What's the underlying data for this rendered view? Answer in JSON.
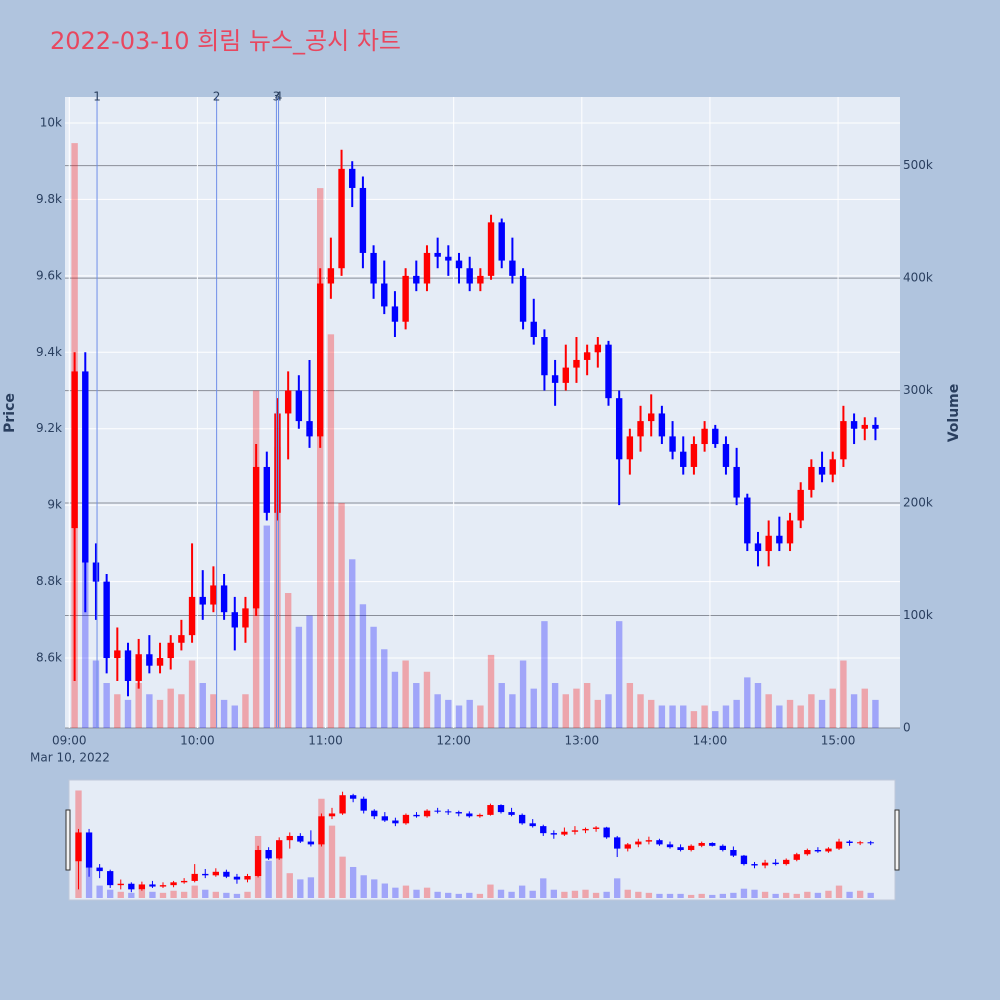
{
  "chart_data": {
    "type": "candlestick",
    "title": "2022-03-10 희림 뉴스_공시 차트",
    "y_title": "Price",
    "y2_title": "Volume",
    "x_date_label": "Mar 10, 2022",
    "increasing_color": "#ff0000",
    "decreasing_color": "#0000ff",
    "x": [
      "2022-03-10 09:00",
      "2022-03-10 09:05",
      "2022-03-10 09:10",
      "2022-03-10 09:15",
      "2022-03-10 09:20",
      "2022-03-10 09:25",
      "2022-03-10 09:30",
      "2022-03-10 09:35",
      "2022-03-10 09:40",
      "2022-03-10 09:45",
      "2022-03-10 09:50",
      "2022-03-10 09:55",
      "2022-03-10 10:00",
      "2022-03-10 10:05",
      "2022-03-10 10:10",
      "2022-03-10 10:15",
      "2022-03-10 10:20",
      "2022-03-10 10:25",
      "2022-03-10 10:30",
      "2022-03-10 10:35",
      "2022-03-10 10:40",
      "2022-03-10 10:45",
      "2022-03-10 10:50",
      "2022-03-10 10:55",
      "2022-03-10 11:00",
      "2022-03-10 11:05",
      "2022-03-10 11:10",
      "2022-03-10 11:15",
      "2022-03-10 11:20",
      "2022-03-10 11:25",
      "2022-03-10 11:30",
      "2022-03-10 11:35",
      "2022-03-10 11:40",
      "2022-03-10 11:45",
      "2022-03-10 11:50",
      "2022-03-10 11:55",
      "2022-03-10 12:00",
      "2022-03-10 12:05",
      "2022-03-10 12:10",
      "2022-03-10 12:15",
      "2022-03-10 12:20",
      "2022-03-10 12:25",
      "2022-03-10 12:30",
      "2022-03-10 12:35",
      "2022-03-10 12:40",
      "2022-03-10 12:45",
      "2022-03-10 12:50",
      "2022-03-10 12:55",
      "2022-03-10 13:00",
      "2022-03-10 13:05",
      "2022-03-10 13:10",
      "2022-03-10 13:15",
      "2022-03-10 13:20",
      "2022-03-10 13:25",
      "2022-03-10 13:30",
      "2022-03-10 13:35",
      "2022-03-10 13:40",
      "2022-03-10 13:45",
      "2022-03-10 13:50",
      "2022-03-10 13:55",
      "2022-03-10 14:00",
      "2022-03-10 14:05",
      "2022-03-10 14:10",
      "2022-03-10 14:15",
      "2022-03-10 14:20",
      "2022-03-10 14:25",
      "2022-03-10 14:30",
      "2022-03-10 14:35",
      "2022-03-10 14:40",
      "2022-03-10 14:45",
      "2022-03-10 14:50",
      "2022-03-10 14:55",
      "2022-03-10 15:00",
      "2022-03-10 15:05",
      "2022-03-10 15:10",
      "2022-03-10 15:15"
    ],
    "open": [
      8940,
      9350,
      8850,
      8800,
      8600,
      8620,
      8540,
      8610,
      8580,
      8600,
      8640,
      8660,
      8760,
      8740,
      8790,
      8720,
      8680,
      8730,
      9100,
      8980,
      9240,
      9300,
      9220,
      9180,
      9580,
      9620,
      9880,
      9830,
      9660,
      9580,
      9520,
      9480,
      9600,
      9580,
      9660,
      9650,
      9640,
      9620,
      9580,
      9600,
      9740,
      9640,
      9600,
      9480,
      9440,
      9340,
      9320,
      9360,
      9380,
      9400,
      9420,
      9280,
      9120,
      9180,
      9220,
      9240,
      9180,
      9140,
      9100,
      9160,
      9200,
      9160,
      9100,
      9020,
      8900,
      8880,
      8920,
      8900,
      8960,
      9040,
      9100,
      9080,
      9120,
      9220,
      9200,
      9210
    ],
    "high": [
      9400,
      9400,
      8900,
      8820,
      8680,
      8640,
      8650,
      8660,
      8640,
      8660,
      8700,
      8900,
      8830,
      8840,
      8820,
      8760,
      8760,
      9160,
      9140,
      9280,
      9350,
      9340,
      9380,
      9620,
      9700,
      9930,
      9900,
      9860,
      9680,
      9640,
      9560,
      9620,
      9640,
      9680,
      9700,
      9680,
      9660,
      9650,
      9620,
      9760,
      9750,
      9700,
      9620,
      9540,
      9460,
      9380,
      9420,
      9440,
      9420,
      9440,
      9430,
      9300,
      9200,
      9260,
      9290,
      9260,
      9220,
      9180,
      9180,
      9220,
      9210,
      9180,
      9150,
      9030,
      8930,
      8960,
      8970,
      8980,
      9060,
      9120,
      9140,
      9140,
      9260,
      9240,
      9230,
      9230
    ],
    "low": [
      8540,
      8720,
      8700,
      8560,
      8540,
      8500,
      8520,
      8560,
      8560,
      8570,
      8620,
      8640,
      8700,
      8720,
      8700,
      8620,
      8640,
      8710,
      8960,
      8960,
      9120,
      9200,
      9150,
      9150,
      9540,
      9600,
      9780,
      9620,
      9540,
      9500,
      9440,
      9460,
      9560,
      9560,
      9620,
      9600,
      9580,
      9560,
      9560,
      9590,
      9620,
      9580,
      9460,
      9420,
      9300,
      9260,
      9300,
      9320,
      9340,
      9360,
      9260,
      9000,
      9080,
      9140,
      9180,
      9160,
      9120,
      9080,
      9080,
      9140,
      9150,
      9080,
      9000,
      8880,
      8840,
      8840,
      8880,
      8880,
      8940,
      9020,
      9060,
      9060,
      9100,
      9160,
      9170,
      9170
    ],
    "close": [
      9350,
      8850,
      8800,
      8600,
      8620,
      8540,
      8610,
      8580,
      8600,
      8640,
      8660,
      8760,
      8740,
      8790,
      8720,
      8680,
      8730,
      9100,
      8980,
      9240,
      9300,
      9220,
      9180,
      9580,
      9620,
      9880,
      9830,
      9660,
      9580,
      9520,
      9480,
      9600,
      9580,
      9660,
      9650,
      9640,
      9620,
      9580,
      9600,
      9740,
      9640,
      9600,
      9480,
      9440,
      9340,
      9320,
      9360,
      9380,
      9400,
      9420,
      9280,
      9120,
      9180,
      9220,
      9240,
      9180,
      9140,
      9100,
      9160,
      9200,
      9160,
      9100,
      9020,
      8900,
      8880,
      8920,
      8900,
      8960,
      9040,
      9100,
      9080,
      9120,
      9220,
      9200,
      9210,
      9200
    ],
    "volume": [
      520000,
      150000,
      60000,
      40000,
      30000,
      25000,
      40000,
      30000,
      25000,
      35000,
      30000,
      60000,
      40000,
      30000,
      25000,
      20000,
      30000,
      300000,
      180000,
      250000,
      120000,
      90000,
      100000,
      480000,
      350000,
      200000,
      150000,
      110000,
      90000,
      70000,
      50000,
      60000,
      40000,
      50000,
      30000,
      25000,
      20000,
      25000,
      20000,
      65000,
      40000,
      30000,
      60000,
      35000,
      95000,
      40000,
      30000,
      35000,
      40000,
      25000,
      30000,
      95000,
      40000,
      30000,
      25000,
      20000,
      20000,
      20000,
      15000,
      20000,
      15000,
      20000,
      25000,
      45000,
      40000,
      30000,
      20000,
      25000,
      20000,
      30000,
      25000,
      35000,
      60000,
      30000,
      35000,
      25000
    ],
    "xlim": [
      "2022-03-10 08:58",
      "2022-03-10 15:29"
    ],
    "xticks": [
      {
        "value": "2022-03-10 09:00",
        "label": "09:00"
      },
      {
        "value": "2022-03-10 10:00",
        "label": "10:00"
      },
      {
        "value": "2022-03-10 11:00",
        "label": "11:00"
      },
      {
        "value": "2022-03-10 12:00",
        "label": "12:00"
      },
      {
        "value": "2022-03-10 13:00",
        "label": "13:00"
      },
      {
        "value": "2022-03-10 14:00",
        "label": "14:00"
      },
      {
        "value": "2022-03-10 15:00",
        "label": "15:00"
      }
    ],
    "ylim": [
      8417,
      10068
    ],
    "yticks": [
      {
        "value": 8600,
        "label": "8.6k"
      },
      {
        "value": 8800,
        "label": "8.8k"
      },
      {
        "value": 9000,
        "label": "9k"
      },
      {
        "value": 9200,
        "label": "9.2k"
      },
      {
        "value": 9400,
        "label": "9.4k"
      },
      {
        "value": 9600,
        "label": "9.6k"
      },
      {
        "value": 9800,
        "label": "9.8k"
      },
      {
        "value": 10000,
        "label": "10k"
      }
    ],
    "y2lim": [
      0,
      561000
    ],
    "y2ticks": [
      0,
      {
        "value": 100000,
        "label": "100k"
      },
      {
        "value": 200000,
        "label": "200k"
      },
      {
        "value": 300000,
        "label": "300k"
      },
      {
        "value": 400000,
        "label": "400k"
      },
      {
        "value": 500000,
        "label": "500k"
      }
    ],
    "vlines": [
      {
        "x": "2022-03-10 09:13",
        "label": "1"
      },
      {
        "x": "2022-03-10 10:09",
        "label": "2"
      },
      {
        "x": "2022-03-10 10:37",
        "label": "3"
      },
      {
        "x": "2022-03-10 10:38",
        "label": "4"
      }
    ],
    "grid": true,
    "rangeslider": true
  }
}
